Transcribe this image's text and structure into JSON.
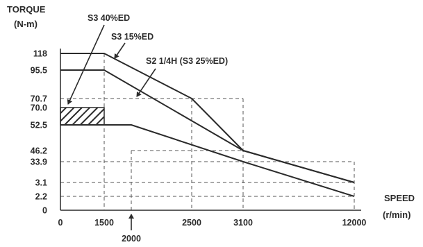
{
  "chart_data": {
    "type": "line",
    "ylabel_line1": "TORQUE",
    "ylabel_line2": "(N-m)",
    "xlabel_line1": "SPEED",
    "xlabel_line2": "(r/min)",
    "xlim": [
      0,
      12000
    ],
    "ylim": [
      0,
      118
    ],
    "x_ticks": [
      {
        "value": 0,
        "label": "0"
      },
      {
        "value": 1500,
        "label": "1500"
      },
      {
        "value": 2500,
        "label": "2500"
      },
      {
        "value": 3100,
        "label": "3100"
      },
      {
        "value": 12000,
        "label": "12000"
      }
    ],
    "x_extra_tick": {
      "value": 2000,
      "label": "2000"
    },
    "y_ticks": [
      {
        "value": 0,
        "label": "0"
      },
      {
        "value": 2.2,
        "label": "2.2"
      },
      {
        "value": 3.1,
        "label": "3.1"
      },
      {
        "value": 33.9,
        "label": "33.9"
      },
      {
        "value": 46.2,
        "label": "46.2"
      },
      {
        "value": 52.5,
        "label": "52.5"
      },
      {
        "value": 70.0,
        "label": "70.0"
      },
      {
        "value": 70.7,
        "label": "70.7"
      },
      {
        "value": 95.5,
        "label": "95.5"
      },
      {
        "value": 118,
        "label": "118"
      }
    ],
    "series": [
      {
        "name": "S3 40%ED",
        "x": [
          0,
          1500,
          2500,
          3100,
          12000
        ],
        "y": [
          118,
          118,
          70.7,
          46.2,
          3.1
        ]
      },
      {
        "name": "S3 15%ED",
        "x": [
          0,
          1500,
          3100,
          12000
        ],
        "y": [
          95.5,
          95.5,
          46.2,
          3.1
        ]
      },
      {
        "name": "S2 1/4H  (S3 25%ED)",
        "x": [
          0,
          2000,
          3100,
          12000
        ],
        "y": [
          52.5,
          52.5,
          33.9,
          2.2
        ]
      }
    ],
    "hatched_region": {
      "x": [
        0,
        1500
      ],
      "y": [
        52.5,
        70.0
      ]
    },
    "colors": {
      "ink": "#2b2b2b",
      "grid": "#555555"
    }
  }
}
